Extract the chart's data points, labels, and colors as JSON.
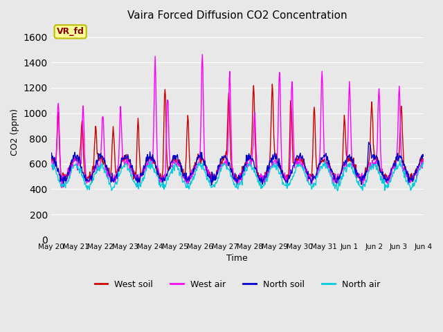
{
  "title": "Vaira Forced Diffusion CO2 Concentration",
  "xlabel": "Time",
  "ylabel": "CO2 (ppm)",
  "ylim": [
    0,
    1700
  ],
  "yticks": [
    0,
    200,
    400,
    600,
    800,
    1000,
    1200,
    1400,
    1600
  ],
  "legend_label": "VR_fd",
  "legend_box_color": "#ffff99",
  "legend_box_border": "#bbbb00",
  "legend_text_color": "#880000",
  "background_color": "#e8e8e8",
  "plot_bg_color": "#e8e8e8",
  "series": {
    "west_soil": {
      "color": "#cc0000",
      "label": "West soil"
    },
    "west_air": {
      "color": "#ff00ff",
      "label": "West air"
    },
    "north_soil": {
      "color": "#0000cc",
      "label": "North soil"
    },
    "north_air": {
      "color": "#00ccdd",
      "label": "North air"
    }
  },
  "x_tick_labels": [
    "May 20",
    "May 21",
    "May 22",
    "May 23",
    "May 24",
    "May 25",
    "May 26",
    "May 27",
    "May 28",
    "May 29",
    "May 30",
    "May 31",
    "Jun 1",
    "Jun 2",
    "Jun 3",
    "Jun 4"
  ],
  "n_days": 15,
  "points_per_day": 48
}
